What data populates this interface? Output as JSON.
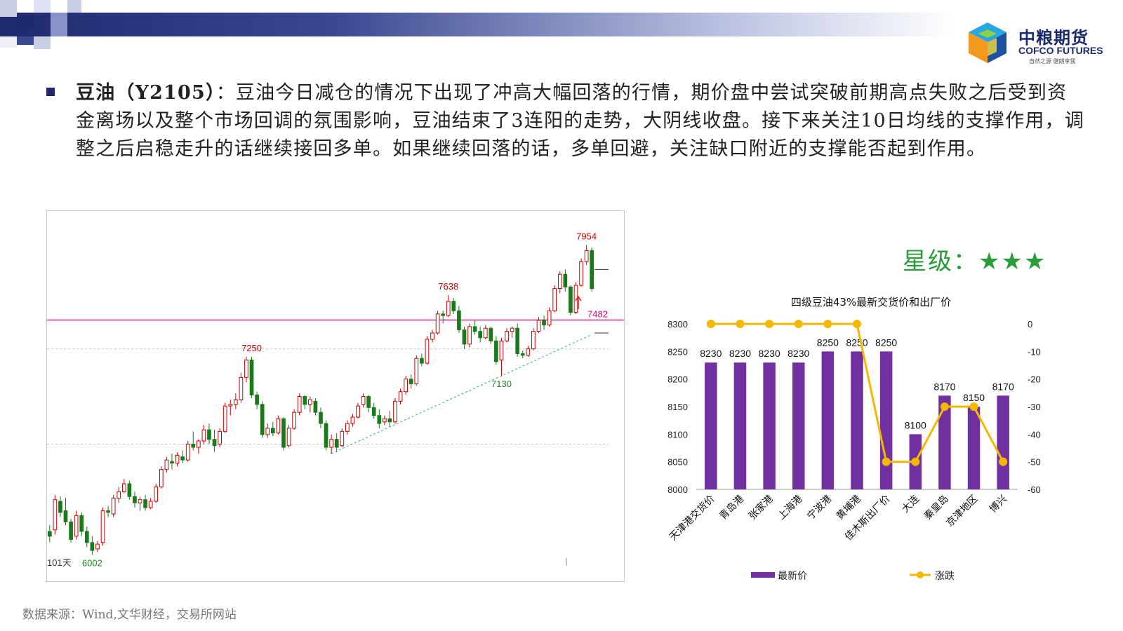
{
  "header": {
    "logo_cn": "中粮期货",
    "logo_en": "COFCO FUTURES",
    "logo_tag": "自然之源 健朗享我",
    "colors": {
      "band_dark": "#1f2a6e",
      "logo_blue": "#1a2a6c"
    }
  },
  "commentary": {
    "title": "豆油（Y2105）",
    "body": "：豆油今日减仓的情况下出现了冲高大幅回落的行情，期价盘中尝试突破前期高点失败之后受到资金离场以及整个市场回调的氛围影响，豆油结束了3连阳的走势，大阴线收盘。接下来关注10日均线的支撑作用，调整之后启稳走升的话继续接回多单。如果继续回落的话，多单回避，关注缺口附近的支撑能否起到作用。"
  },
  "rating": {
    "label": "星级：",
    "stars": "★★★"
  },
  "source": "数据来源：Wind,文华财经，交易所网站",
  "chart_data": [
    {
      "type": "candlestick",
      "title": "",
      "ylim": [
        5960,
        8080
      ],
      "annotations": [
        {
          "text": "7954",
          "value": 7954,
          "kind": "high",
          "color": "#cc0000"
        },
        {
          "text": "7638",
          "value": 7638,
          "kind": "high",
          "color": "#cc0000"
        },
        {
          "text": "7250",
          "value": 7250,
          "kind": "high",
          "color": "#cc0000"
        },
        {
          "text": "7130",
          "value": 7130,
          "kind": "low",
          "color": "#1a8a1a"
        },
        {
          "text": "6002",
          "value": 6002,
          "kind": "low",
          "color": "#1a8a1a"
        }
      ],
      "period_label": "101天",
      "horizontal_level": {
        "value": 7482,
        "label": "7482",
        "color": "#d0007a"
      },
      "trendline_color": "#2aa8a0",
      "candle_colors": {
        "up": "#cc0000",
        "down": "#1a7a1a"
      },
      "candles": [
        {
          "o": 6150,
          "h": 6190,
          "l": 6080,
          "c": 6120
        },
        {
          "o": 6160,
          "h": 6380,
          "l": 6130,
          "c": 6350
        },
        {
          "o": 6340,
          "h": 6370,
          "l": 6240,
          "c": 6270
        },
        {
          "o": 6280,
          "h": 6360,
          "l": 6190,
          "c": 6210
        },
        {
          "o": 6210,
          "h": 6230,
          "l": 6080,
          "c": 6100
        },
        {
          "o": 6120,
          "h": 6280,
          "l": 6100,
          "c": 6250
        },
        {
          "o": 6250,
          "h": 6270,
          "l": 6120,
          "c": 6150
        },
        {
          "o": 6150,
          "h": 6180,
          "l": 6050,
          "c": 6080
        },
        {
          "o": 6080,
          "h": 6120,
          "l": 6002,
          "c": 6030
        },
        {
          "o": 6040,
          "h": 6090,
          "l": 6020,
          "c": 6070
        },
        {
          "o": 6080,
          "h": 6300,
          "l": 6060,
          "c": 6280
        },
        {
          "o": 6280,
          "h": 6310,
          "l": 6240,
          "c": 6270
        },
        {
          "o": 6260,
          "h": 6380,
          "l": 6240,
          "c": 6360
        },
        {
          "o": 6360,
          "h": 6430,
          "l": 6330,
          "c": 6400
        },
        {
          "o": 6400,
          "h": 6480,
          "l": 6390,
          "c": 6450
        },
        {
          "o": 6450,
          "h": 6470,
          "l": 6350,
          "c": 6370
        },
        {
          "o": 6370,
          "h": 6400,
          "l": 6300,
          "c": 6330
        },
        {
          "o": 6330,
          "h": 6370,
          "l": 6280,
          "c": 6350
        },
        {
          "o": 6350,
          "h": 6380,
          "l": 6280,
          "c": 6300
        },
        {
          "o": 6300,
          "h": 6360,
          "l": 6290,
          "c": 6340
        },
        {
          "o": 6340,
          "h": 6450,
          "l": 6330,
          "c": 6430
        },
        {
          "o": 6430,
          "h": 6560,
          "l": 6420,
          "c": 6540
        },
        {
          "o": 6540,
          "h": 6620,
          "l": 6520,
          "c": 6600
        },
        {
          "o": 6590,
          "h": 6640,
          "l": 6540,
          "c": 6580
        },
        {
          "o": 6580,
          "h": 6650,
          "l": 6560,
          "c": 6630
        },
        {
          "o": 6620,
          "h": 6660,
          "l": 6580,
          "c": 6600
        },
        {
          "o": 6600,
          "h": 6720,
          "l": 6590,
          "c": 6700
        },
        {
          "o": 6700,
          "h": 6780,
          "l": 6660,
          "c": 6680
        },
        {
          "o": 6680,
          "h": 6730,
          "l": 6640,
          "c": 6720
        },
        {
          "o": 6720,
          "h": 6820,
          "l": 6700,
          "c": 6790
        },
        {
          "o": 6790,
          "h": 6830,
          "l": 6700,
          "c": 6730
        },
        {
          "o": 6730,
          "h": 6790,
          "l": 6650,
          "c": 6690
        },
        {
          "o": 6700,
          "h": 6800,
          "l": 6680,
          "c": 6780
        },
        {
          "o": 6780,
          "h": 6960,
          "l": 6770,
          "c": 6940
        },
        {
          "o": 6940,
          "h": 6980,
          "l": 6880,
          "c": 6950
        },
        {
          "o": 6950,
          "h": 7020,
          "l": 6920,
          "c": 6980
        },
        {
          "o": 6980,
          "h": 7150,
          "l": 6960,
          "c": 7120
        },
        {
          "o": 7120,
          "h": 7250,
          "l": 7090,
          "c": 7230
        },
        {
          "o": 7230,
          "h": 7250,
          "l": 6990,
          "c": 7010
        },
        {
          "o": 7010,
          "h": 7030,
          "l": 6920,
          "c": 6950
        },
        {
          "o": 6950,
          "h": 6970,
          "l": 6740,
          "c": 6760
        },
        {
          "o": 6760,
          "h": 6830,
          "l": 6740,
          "c": 6800
        },
        {
          "o": 6800,
          "h": 6840,
          "l": 6750,
          "c": 6770
        },
        {
          "o": 6770,
          "h": 6880,
          "l": 6760,
          "c": 6860
        },
        {
          "o": 6860,
          "h": 6870,
          "l": 6660,
          "c": 6680
        },
        {
          "o": 6690,
          "h": 6820,
          "l": 6680,
          "c": 6800
        },
        {
          "o": 6800,
          "h": 6920,
          "l": 6790,
          "c": 6900
        },
        {
          "o": 6900,
          "h": 7020,
          "l": 6880,
          "c": 7000
        },
        {
          "o": 7000,
          "h": 7010,
          "l": 6920,
          "c": 6950
        },
        {
          "o": 6950,
          "h": 7000,
          "l": 6900,
          "c": 6980
        },
        {
          "o": 6970,
          "h": 6990,
          "l": 6880,
          "c": 6900
        },
        {
          "o": 6900,
          "h": 6930,
          "l": 6800,
          "c": 6830
        },
        {
          "o": 6830,
          "h": 6850,
          "l": 6660,
          "c": 6680
        },
        {
          "o": 6680,
          "h": 6760,
          "l": 6640,
          "c": 6730
        },
        {
          "o": 6730,
          "h": 6770,
          "l": 6650,
          "c": 6680
        },
        {
          "o": 6690,
          "h": 6800,
          "l": 6680,
          "c": 6780
        },
        {
          "o": 6780,
          "h": 6850,
          "l": 6760,
          "c": 6830
        },
        {
          "o": 6830,
          "h": 6890,
          "l": 6810,
          "c": 6870
        },
        {
          "o": 6870,
          "h": 6960,
          "l": 6860,
          "c": 6940
        },
        {
          "o": 6950,
          "h": 7020,
          "l": 6930,
          "c": 7000
        },
        {
          "o": 7000,
          "h": 7010,
          "l": 6900,
          "c": 6930
        },
        {
          "o": 6930,
          "h": 6960,
          "l": 6860,
          "c": 6880
        },
        {
          "o": 6880,
          "h": 6920,
          "l": 6800,
          "c": 6830
        },
        {
          "o": 6840,
          "h": 6880,
          "l": 6820,
          "c": 6860
        },
        {
          "o": 6860,
          "h": 6910,
          "l": 6810,
          "c": 6840
        },
        {
          "o": 6840,
          "h": 6990,
          "l": 6830,
          "c": 6970
        },
        {
          "o": 6970,
          "h": 7050,
          "l": 6950,
          "c": 7030
        },
        {
          "o": 7030,
          "h": 7130,
          "l": 7010,
          "c": 7110
        },
        {
          "o": 7110,
          "h": 7140,
          "l": 7050,
          "c": 7080
        },
        {
          "o": 7080,
          "h": 7260,
          "l": 7070,
          "c": 7240
        },
        {
          "o": 7240,
          "h": 7270,
          "l": 7190,
          "c": 7210
        },
        {
          "o": 7210,
          "h": 7380,
          "l": 7200,
          "c": 7360
        },
        {
          "o": 7360,
          "h": 7420,
          "l": 7340,
          "c": 7400
        },
        {
          "o": 7400,
          "h": 7540,
          "l": 7390,
          "c": 7520
        },
        {
          "o": 7520,
          "h": 7540,
          "l": 7460,
          "c": 7510
        },
        {
          "o": 7510,
          "h": 7638,
          "l": 7500,
          "c": 7600
        },
        {
          "o": 7600,
          "h": 7620,
          "l": 7520,
          "c": 7540
        },
        {
          "o": 7540,
          "h": 7570,
          "l": 7400,
          "c": 7420
        },
        {
          "o": 7420,
          "h": 7440,
          "l": 7300,
          "c": 7330
        },
        {
          "o": 7330,
          "h": 7460,
          "l": 7310,
          "c": 7440
        },
        {
          "o": 7440,
          "h": 7480,
          "l": 7390,
          "c": 7410
        },
        {
          "o": 7410,
          "h": 7440,
          "l": 7340,
          "c": 7370
        },
        {
          "o": 7370,
          "h": 7450,
          "l": 7360,
          "c": 7430
        },
        {
          "o": 7430,
          "h": 7440,
          "l": 7330,
          "c": 7350
        },
        {
          "o": 7350,
          "h": 7380,
          "l": 7200,
          "c": 7220
        },
        {
          "o": 7230,
          "h": 7370,
          "l": 7130,
          "c": 7350
        },
        {
          "o": 7350,
          "h": 7430,
          "l": 7340,
          "c": 7410
        },
        {
          "o": 7410,
          "h": 7440,
          "l": 7370,
          "c": 7430
        },
        {
          "o": 7430,
          "h": 7460,
          "l": 7250,
          "c": 7270
        },
        {
          "o": 7270,
          "h": 7290,
          "l": 7240,
          "c": 7260
        },
        {
          "o": 7260,
          "h": 7320,
          "l": 7250,
          "c": 7300
        },
        {
          "o": 7300,
          "h": 7430,
          "l": 7290,
          "c": 7410
        },
        {
          "o": 7410,
          "h": 7500,
          "l": 7400,
          "c": 7480
        },
        {
          "o": 7480,
          "h": 7510,
          "l": 7420,
          "c": 7450
        },
        {
          "o": 7450,
          "h": 7560,
          "l": 7440,
          "c": 7540
        },
        {
          "o": 7540,
          "h": 7700,
          "l": 7530,
          "c": 7680
        },
        {
          "o": 7680,
          "h": 7790,
          "l": 7650,
          "c": 7770
        },
        {
          "o": 7770,
          "h": 7800,
          "l": 7660,
          "c": 7690
        },
        {
          "o": 7690,
          "h": 7700,
          "l": 7510,
          "c": 7530
        },
        {
          "o": 7530,
          "h": 7720,
          "l": 7520,
          "c": 7700
        },
        {
          "o": 7700,
          "h": 7870,
          "l": 7690,
          "c": 7850
        },
        {
          "o": 7850,
          "h": 7954,
          "l": 7830,
          "c": 7920
        },
        {
          "o": 7920,
          "h": 7940,
          "l": 7660,
          "c": 7680
        }
      ]
    },
    {
      "type": "bar+line",
      "title": "四级豆油43%最新交货价和出厂价",
      "categories": [
        "天津港交货价",
        "青岛港",
        "张家港",
        "上海港",
        "宁波港",
        "黄埔港",
        "佳木斯出厂价",
        "大连",
        "秦皇岛",
        "京津地区",
        "博兴"
      ],
      "series": [
        {
          "name": "最新价",
          "type": "bar",
          "axis": "left",
          "color": "#7030a0",
          "values": [
            8230,
            8230,
            8230,
            8230,
            8250,
            8250,
            8250,
            8100,
            8170,
            8150,
            8170
          ]
        },
        {
          "name": "涨跌",
          "type": "line",
          "axis": "right",
          "color": "#f5b800",
          "values": [
            0,
            0,
            0,
            0,
            0,
            0,
            -50,
            -50,
            -30,
            -30,
            -50
          ]
        }
      ],
      "ylim_left": [
        8000,
        8300
      ],
      "yticks_left": [
        8000,
        8050,
        8100,
        8150,
        8200,
        8250,
        8300
      ],
      "ylim_right": [
        -60,
        0
      ],
      "yticks_right": [
        0,
        -10,
        -20,
        -30,
        -40,
        -50,
        -60
      ],
      "legend": "bottom"
    }
  ]
}
